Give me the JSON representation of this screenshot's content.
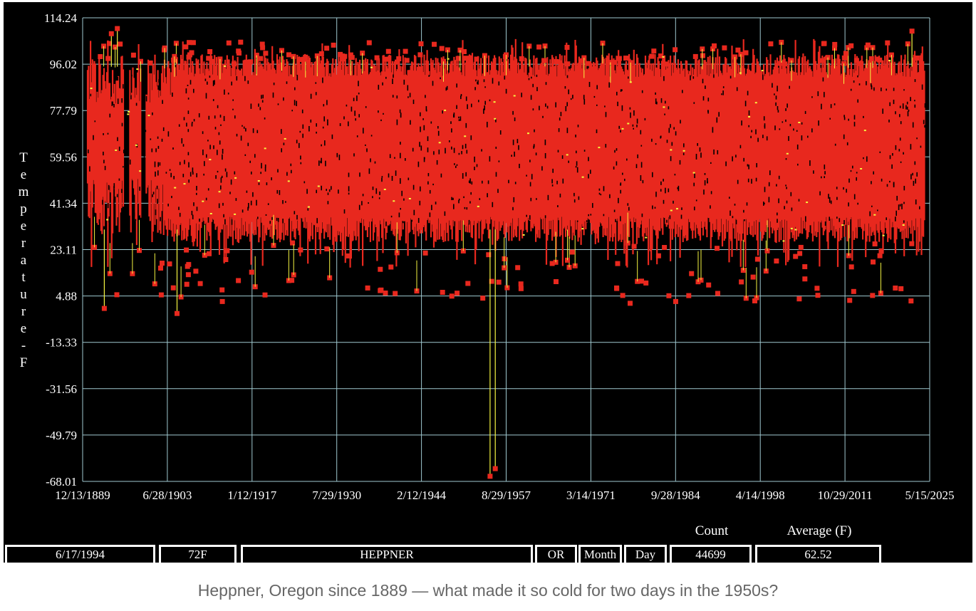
{
  "chart_data": {
    "type": "scatter",
    "ylabel": "Temperature-F",
    "y_ticks": [
      "114.24",
      "96.02",
      "77.79",
      "59.56",
      "41.34",
      "23.11",
      "4.88",
      "-13.33",
      "-31.56",
      "-49.79",
      "-68.01"
    ],
    "x_ticks": [
      "12/13/1889",
      "6/28/1903",
      "1/12/1917",
      "7/29/1930",
      "2/12/1944",
      "8/29/1957",
      "3/14/1971",
      "9/28/1984",
      "4/14/1998",
      "10/29/2011",
      "5/15/2025"
    ],
    "ylim": [
      -68.01,
      114.24
    ],
    "xlim": [
      "12/13/1889",
      "5/15/2025"
    ],
    "grid": true,
    "series_color": "#e8281e",
    "range_line_color": "#f5f542",
    "highlighted_points": [
      {
        "date": "1893-06-01",
        "value": 0
      },
      {
        "date": "1894-07-15",
        "value": 108
      },
      {
        "date": "1895-07-01",
        "value": 110
      },
      {
        "date": "1905-01-15",
        "value": -2
      },
      {
        "date": "1955-02-01",
        "value": -66
      },
      {
        "date": "1955-12-01",
        "value": -63
      },
      {
        "date": "2022-07-15",
        "value": 109
      }
    ],
    "band_summary": {
      "typical_low": 26,
      "typical_high": 100
    }
  },
  "status": {
    "date": "6/17/1994",
    "temp": "72F",
    "station": "HEPPNER",
    "state": "OR",
    "month": "Month",
    "day": "Day",
    "count_label": "Count",
    "count": "44699",
    "average_label": "Average (F)",
    "average": "62.52"
  },
  "caption": "Heppner, Oregon since 1889 — what made it so cold for two days in the 1950s?"
}
